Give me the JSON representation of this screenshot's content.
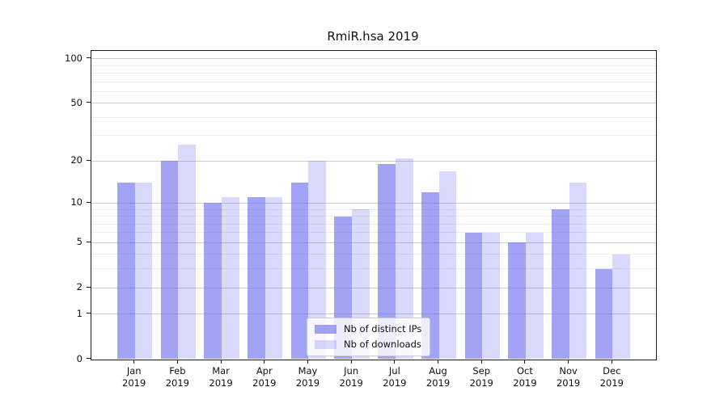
{
  "title": "RmiR.hsa 2019",
  "chart_data": {
    "type": "bar",
    "title": "RmiR.hsa 2019",
    "categories": [
      "Jan",
      "Feb",
      "Mar",
      "Apr",
      "May",
      "Jun",
      "Jul",
      "Aug",
      "Sep",
      "Oct",
      "Nov",
      "Dec"
    ],
    "x_tick_labels": [
      [
        "Jan",
        "2019"
      ],
      [
        "Feb",
        "2019"
      ],
      [
        "Mar",
        "2019"
      ],
      [
        "Apr",
        "2019"
      ],
      [
        "May",
        "2019"
      ],
      [
        "Jun",
        "2019"
      ],
      [
        "Jul",
        "2019"
      ],
      [
        "Aug",
        "2019"
      ],
      [
        "Sep",
        "2019"
      ],
      [
        "Oct",
        "2019"
      ],
      [
        "Nov",
        "2019"
      ],
      [
        "Dec",
        "2019"
      ]
    ],
    "series": [
      {
        "name": "Nb of distinct IPs",
        "color": "#6666ee",
        "alpha": 0.6,
        "values": [
          14,
          20,
          10,
          11,
          14,
          8,
          19,
          12,
          6,
          5,
          9,
          3
        ]
      },
      {
        "name": "Nb of downloads",
        "color": "#6666ee",
        "alpha": 0.25,
        "values": [
          14,
          26,
          11,
          11,
          20,
          9,
          21,
          17,
          6,
          6,
          14,
          4
        ]
      }
    ],
    "y_scale": "log1p",
    "y_ticks": [
      0,
      1,
      2,
      5,
      10,
      20,
      50,
      100
    ],
    "y_minor_ticks": [
      3,
      4,
      6,
      7,
      8,
      9,
      30,
      40,
      60,
      70,
      80,
      90
    ],
    "ylim": [
      0,
      113
    ],
    "xlabel": "",
    "ylabel": "",
    "grid": true,
    "legend_position": "bottom-center",
    "colors": {
      "spine": "#1a1a1a",
      "grid_major": "#cccccc",
      "grid_minor": "#ebebeb",
      "background": "#ffffff"
    }
  }
}
